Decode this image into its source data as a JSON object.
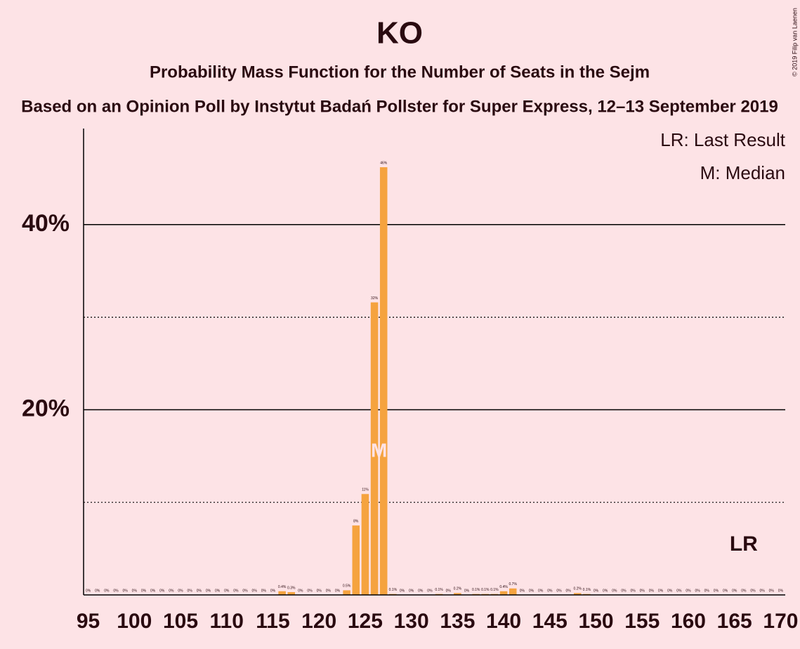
{
  "chart_data": {
    "type": "bar",
    "title": "KO",
    "subtitle": "Probability Mass Function for the Number of Seats in the Sejm",
    "subtitle2": "Based on an Opinion Poll by Instytut Badań Pollster for Super Express, 12–13 September 2019",
    "copyright": "© 2019 Filip van Laenen",
    "x": [
      95,
      96,
      97,
      98,
      99,
      100,
      101,
      102,
      103,
      104,
      105,
      106,
      107,
      108,
      109,
      110,
      111,
      112,
      113,
      114,
      115,
      116,
      117,
      118,
      119,
      120,
      121,
      122,
      123,
      124,
      125,
      126,
      127,
      128,
      129,
      130,
      131,
      132,
      133,
      134,
      135,
      136,
      137,
      138,
      139,
      140,
      141,
      142,
      143,
      144,
      145,
      146,
      147,
      148,
      149,
      150,
      151,
      152,
      153,
      154,
      155,
      156,
      157,
      158,
      159,
      160,
      161,
      162,
      163,
      164,
      165,
      166,
      167,
      168,
      169,
      170
    ],
    "values": [
      0,
      0,
      0,
      0,
      0,
      0,
      0,
      0,
      0,
      0,
      0,
      0,
      0,
      0,
      0,
      0,
      0,
      0,
      0,
      0,
      0,
      0.4,
      0.3,
      0,
      0,
      0,
      0,
      0,
      0.5,
      7.5,
      10.9,
      31.6,
      46.2,
      0.1,
      0,
      0,
      0,
      0,
      0.1,
      0,
      0.2,
      0,
      0.1,
      0.1,
      0.1,
      0.4,
      0.7,
      0,
      0,
      0,
      0,
      0,
      0,
      0.2,
      0.1,
      0,
      0,
      0,
      0,
      0,
      0,
      0,
      0,
      0,
      0,
      0,
      0,
      0,
      0,
      0,
      0,
      0,
      0,
      0,
      0,
      0
    ],
    "value_labels": [
      "0%",
      "0%",
      "0%",
      "0%",
      "0%",
      "0%",
      "0%",
      "0%",
      "0%",
      "0%",
      "0%",
      "0%",
      "0%",
      "0%",
      "0%",
      "0%",
      "0%",
      "0%",
      "0%",
      "0%",
      "0%",
      "0.4%",
      "0.3%",
      "0%",
      "0%",
      "0%",
      "0%",
      "0%",
      "0.5%",
      "8%",
      "11%",
      "32%",
      "46%",
      "0.1%",
      "0%",
      "0%",
      "0%",
      "0%",
      "0.1%",
      "0%",
      "0.2%",
      "0%",
      "0.1%",
      "0.1%",
      "0.1%",
      "0.4%",
      "0.7%",
      "0%",
      "0%",
      "0%",
      "0%",
      "0%",
      "0%",
      "0.2%",
      "0.1%",
      "0%",
      "0%",
      "0%",
      "0%",
      "0%",
      "0%",
      "0%",
      "0%",
      "0%",
      "0%",
      "0%",
      "0%",
      "0%",
      "0%",
      "0%",
      "0%",
      "0%",
      "0%",
      "0%",
      "0%",
      "0%"
    ],
    "color": "#f5a33f",
    "xlim": [
      94.5,
      170.5
    ],
    "xticks": [
      95,
      100,
      105,
      110,
      115,
      120,
      125,
      130,
      135,
      140,
      145,
      150,
      155,
      160,
      165,
      170
    ],
    "ylim": [
      0,
      50
    ],
    "yticks": [
      {
        "value": 20,
        "label": "20%"
      },
      {
        "value": 40,
        "label": "40%"
      }
    ],
    "minor_yticks": [
      10,
      30
    ],
    "median": {
      "seat": 126,
      "label": "M"
    },
    "last_result": {
      "seat": 166,
      "label": "LR"
    },
    "legend": [
      "LR: Last Result",
      "M: Median"
    ]
  }
}
